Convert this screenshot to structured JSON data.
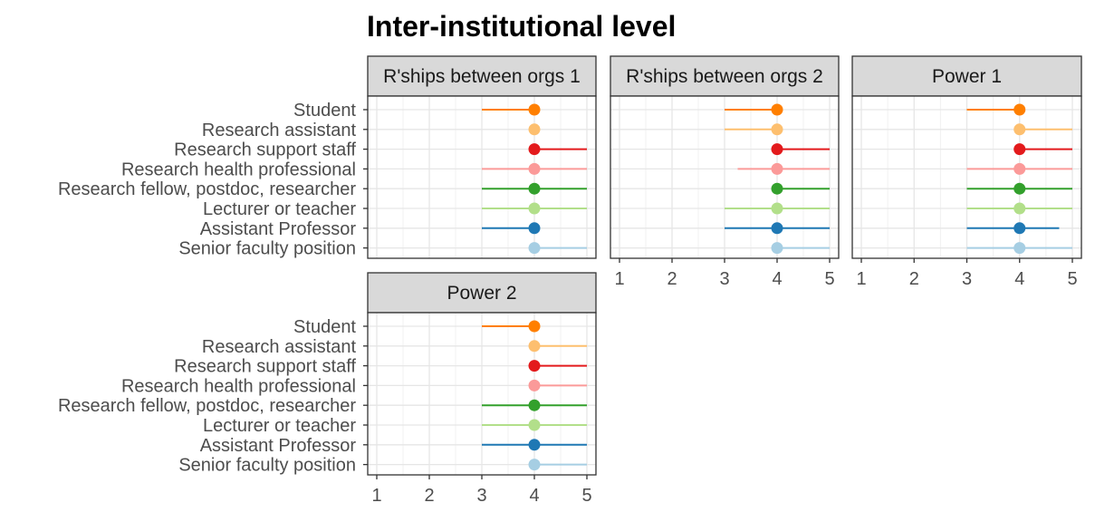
{
  "chart_data": {
    "type": "scatter",
    "title": "Inter-institutional level",
    "xlabel": "",
    "ylabel": "",
    "xlim": [
      1,
      5
    ],
    "x_ticks": [
      1,
      2,
      3,
      4,
      5
    ],
    "grid": true,
    "categories": [
      "Student",
      "Research assistant",
      "Research support staff",
      "Research health professional",
      "Research fellow, postdoc, researcher",
      "Lecturer or teacher",
      "Assistant Professor",
      "Senior faculty position"
    ],
    "colors": [
      "#ff7f00",
      "#fdbf6f",
      "#e31a1c",
      "#fb9a99",
      "#33a02c",
      "#b2df8a",
      "#1f78b4",
      "#a6cee3"
    ],
    "panels": [
      {
        "label": "R'ships between orgs 1",
        "median": [
          4,
          4,
          4,
          4,
          4,
          4,
          4,
          4
        ],
        "low": [
          3,
          4,
          4,
          3,
          3,
          3,
          3,
          4
        ],
        "high": [
          4,
          4,
          5,
          5,
          5,
          5,
          4,
          5
        ]
      },
      {
        "label": "R'ships between orgs 2",
        "median": [
          4,
          4,
          4,
          4,
          4,
          4,
          4,
          4
        ],
        "low": [
          3,
          3,
          4,
          3.25,
          4,
          3,
          3,
          4
        ],
        "high": [
          4,
          4,
          5,
          5,
          5,
          5,
          5,
          5
        ]
      },
      {
        "label": "Power 1",
        "median": [
          4,
          4,
          4,
          4,
          4,
          4,
          4,
          4
        ],
        "low": [
          3,
          4,
          4,
          3,
          3,
          3,
          3,
          3
        ],
        "high": [
          4,
          5,
          5,
          5,
          5,
          5,
          4.75,
          5
        ]
      },
      {
        "label": "Power 2",
        "median": [
          4,
          4,
          4,
          4,
          4,
          4,
          4,
          4
        ],
        "low": [
          3,
          4,
          4,
          4,
          3,
          3,
          3,
          4
        ],
        "high": [
          4,
          5,
          5,
          5,
          5,
          5,
          5,
          5
        ]
      }
    ]
  }
}
